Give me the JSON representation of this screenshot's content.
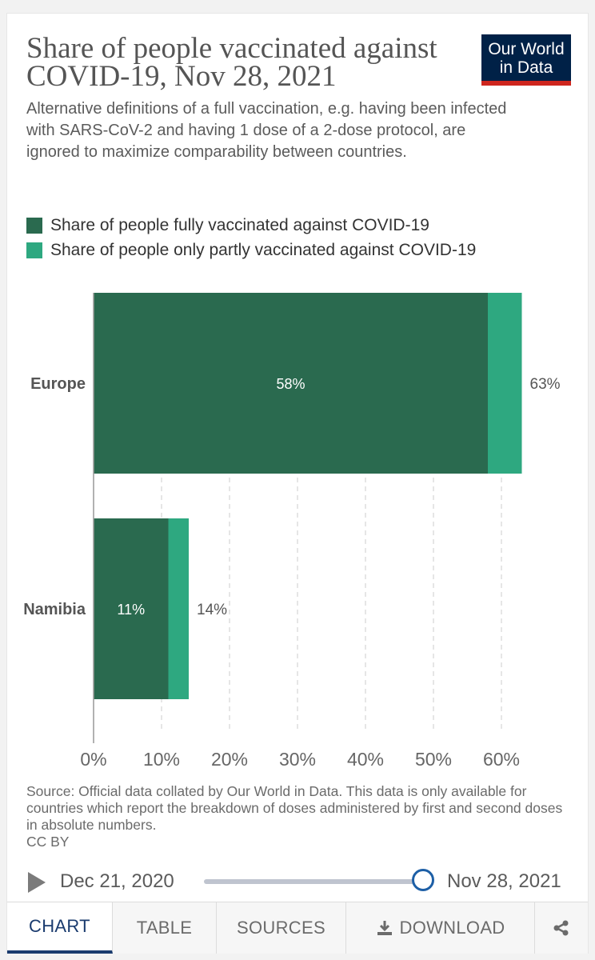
{
  "header": {
    "title": "Share of people vaccinated against COVID-19, Nov 28, 2021",
    "subtitle": "Alternative definitions of a full vaccination, e.g. having been infected with SARS-CoV-2 and having 1 dose of a 2-dose protocol, are ignored to maximize comparability between countries.",
    "logo_line1": "Our World",
    "logo_line2": "in Data"
  },
  "colors": {
    "full": "#2a6a4f",
    "partial": "#2ea880",
    "logo_bg": "#002147",
    "logo_accent": "#ce261e",
    "active_tab": "#1a3b6e"
  },
  "chart_data": {
    "type": "bar",
    "orientation": "horizontal",
    "stacked": true,
    "categories": [
      "Europe",
      "Namibia"
    ],
    "series": [
      {
        "name": "Share of people fully vaccinated against COVID-19",
        "values": [
          58,
          11
        ],
        "color": "#2a6a4f"
      },
      {
        "name": "Share of people only partly vaccinated against COVID-19",
        "values": [
          5,
          3
        ],
        "color": "#2ea880"
      }
    ],
    "full_labels": [
      "58%",
      "11%"
    ],
    "total_labels": [
      "63%",
      "14%"
    ],
    "x_ticks": [
      0,
      10,
      20,
      30,
      40,
      50,
      60
    ],
    "x_tick_labels": [
      "0%",
      "10%",
      "20%",
      "30%",
      "40%",
      "50%",
      "60%"
    ],
    "xlim": [
      0,
      63
    ],
    "grid": true
  },
  "legend": [
    {
      "label": "Share of people fully vaccinated against COVID-19",
      "color": "#2a6a4f"
    },
    {
      "label": "Share of people only partly vaccinated against COVID-19",
      "color": "#2ea880"
    }
  ],
  "footer": {
    "source": "Source: Official data collated by Our World in Data. This data is only available for countries which report the breakdown of doses administered by first and second doses in absolute numbers.",
    "license": "CC BY"
  },
  "timeline": {
    "start_date": "Dec 21, 2020",
    "end_date": "Nov 28, 2021",
    "play_icon": "play-icon"
  },
  "tabs": [
    {
      "label": "CHART",
      "active": true
    },
    {
      "label": "TABLE",
      "active": false
    },
    {
      "label": "SOURCES",
      "active": false
    },
    {
      "label": "DOWNLOAD",
      "active": false,
      "icon": "download-icon"
    },
    {
      "label": "",
      "active": false,
      "icon": "share-icon"
    }
  ]
}
